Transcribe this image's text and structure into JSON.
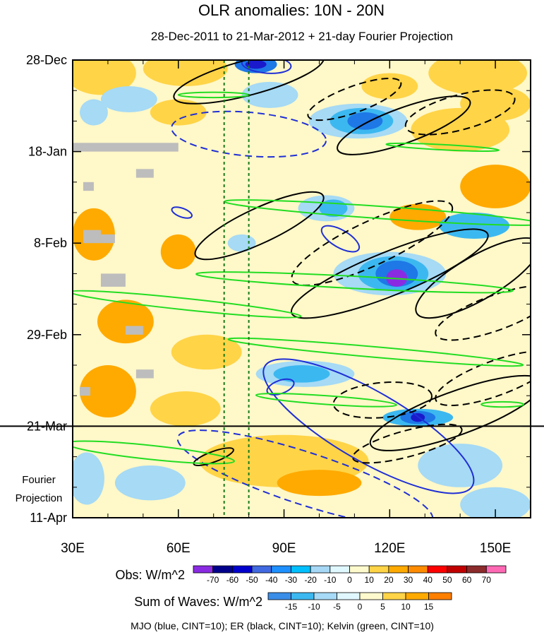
{
  "chart_data": {
    "type": "heatmap",
    "title": "OLR anomalies: 10N - 20N",
    "subtitle": "28-Dec-2011 to 21-Mar-2012 + 21-day Fourier Projection",
    "x_axis": {
      "range": [
        30,
        160
      ],
      "ticks": [
        30,
        60,
        90,
        120,
        150
      ],
      "tick_labels": [
        "30E",
        "60E",
        "90E",
        "120E",
        "150E"
      ]
    },
    "y_axis": {
      "range_days": [
        0,
        105
      ],
      "ticks": [
        0,
        21,
        42,
        63,
        84,
        105
      ],
      "tick_labels": [
        "28-Dec",
        "18-Jan",
        "8-Feb",
        "29-Feb",
        "21-Mar",
        "11-Apr"
      ]
    },
    "projection_label": [
      "Fourier",
      "Projection"
    ],
    "projection_start_day": 84,
    "reference_longitudes": [
      73,
      80
    ],
    "obs_colorbar": {
      "label": "Obs: W/m^2",
      "levels": [
        "-70",
        "-60",
        "-50",
        "-40",
        "-30",
        "-20",
        "-10",
        "0",
        "10",
        "20",
        "30",
        "40",
        "50",
        "60",
        "70"
      ],
      "colors": [
        "#8a2be2",
        "#00008b",
        "#0000cd",
        "#4169e1",
        "#1e90ff",
        "#00bfff",
        "#a6d8f5",
        "#e0f8ff",
        "#fffacd",
        "#ffd447",
        "#ffaa00",
        "#ff8c00",
        "#ff0000",
        "#c00000",
        "#8b2b2b",
        "#ff69b4"
      ]
    },
    "waves_colorbar": {
      "label": "Sum of Waves: W/m^2",
      "levels": [
        "-15",
        "-10",
        "-5",
        "0",
        "5",
        "10",
        "15"
      ],
      "colors": [
        "#3a8ee8",
        "#3cb8f0",
        "#a6daf7",
        "#e0f7ff",
        "#fffacd",
        "#ffd447",
        "#ffaa00",
        "#ff7f00"
      ]
    },
    "legend": "MJO (blue, CINT=10); ER (black, CINT=10); Kelvin (green, CINT=10)",
    "fill_colors": {
      "cream": "#fff8c8",
      "yellow": "#ffd447",
      "orange": "#ffaa00",
      "light_blue": "#a6daf5",
      "sky_blue": "#3cb8f0",
      "blue": "#1e78e6",
      "dark_blue": "#1a1acc",
      "purple": "#8a2be2",
      "missing_gray": "#bdbdbd"
    },
    "field_patches": [
      {
        "lon": 38,
        "day": 3,
        "rx": 10,
        "ry": 5,
        "c": "yellow"
      },
      {
        "lon": 62,
        "day": 2,
        "rx": 12,
        "ry": 4,
        "c": "yellow"
      },
      {
        "lon": 145,
        "day": 3,
        "rx": 14,
        "ry": 5,
        "c": "yellow"
      },
      {
        "lon": 120,
        "day": 6,
        "rx": 8,
        "ry": 3,
        "c": "yellow"
      },
      {
        "lon": 46,
        "day": 9,
        "rx": 8,
        "ry": 3,
        "c": "light_blue"
      },
      {
        "lon": 36,
        "day": 12,
        "rx": 4,
        "ry": 3,
        "c": "light_blue"
      },
      {
        "lon": 60,
        "day": 12,
        "rx": 8,
        "ry": 3,
        "c": "yellow"
      },
      {
        "lon": 150,
        "day": 10,
        "rx": 10,
        "ry": 4,
        "c": "yellow"
      },
      {
        "lon": 140,
        "day": 16,
        "rx": 14,
        "ry": 5,
        "c": "yellow"
      },
      {
        "lon": 86,
        "day": 8,
        "rx": 8,
        "ry": 3,
        "c": "light_blue"
      },
      {
        "lon": 150,
        "day": 29,
        "rx": 10,
        "ry": 5,
        "c": "orange"
      },
      {
        "lon": 128,
        "day": 36,
        "rx": 8,
        "ry": 3,
        "c": "orange"
      },
      {
        "lon": 36,
        "day": 40,
        "rx": 6,
        "ry": 6,
        "c": "orange"
      },
      {
        "lon": 60,
        "day": 44,
        "rx": 5,
        "ry": 4,
        "c": "orange"
      },
      {
        "lon": 45,
        "day": 60,
        "rx": 8,
        "ry": 5,
        "c": "orange"
      },
      {
        "lon": 68,
        "day": 67,
        "rx": 10,
        "ry": 4,
        "c": "yellow"
      },
      {
        "lon": 40,
        "day": 76,
        "rx": 8,
        "ry": 6,
        "c": "orange"
      },
      {
        "lon": 62,
        "day": 80,
        "rx": 10,
        "ry": 4,
        "c": "yellow"
      },
      {
        "lon": 90,
        "day": 92,
        "rx": 24,
        "ry": 6,
        "c": "yellow"
      },
      {
        "lon": 100,
        "day": 97,
        "rx": 12,
        "ry": 3,
        "c": "orange"
      },
      {
        "lon": 140,
        "day": 93,
        "rx": 12,
        "ry": 5,
        "c": "light_blue"
      },
      {
        "lon": 52,
        "day": 97,
        "rx": 10,
        "ry": 4,
        "c": "light_blue"
      },
      {
        "lon": 150,
        "day": 102,
        "rx": 10,
        "ry": 4,
        "c": "light_blue"
      },
      {
        "lon": 34,
        "day": 96,
        "rx": 5,
        "ry": 6,
        "c": "light_blue"
      },
      {
        "lon": 82,
        "day": 1,
        "rx": 6,
        "ry": 2,
        "c": "blue"
      },
      {
        "lon": 82,
        "day": 1,
        "rx": 3,
        "ry": 1,
        "c": "dark_blue"
      },
      {
        "lon": 111,
        "day": 14,
        "rx": 14,
        "ry": 4,
        "c": "light_blue"
      },
      {
        "lon": 112,
        "day": 14,
        "rx": 9,
        "ry": 3,
        "c": "sky_blue"
      },
      {
        "lon": 113,
        "day": 14,
        "rx": 5,
        "ry": 2,
        "c": "blue"
      },
      {
        "lon": 102,
        "day": 34,
        "rx": 8,
        "ry": 3,
        "c": "light_blue"
      },
      {
        "lon": 104,
        "day": 34,
        "rx": 4,
        "ry": 2,
        "c": "sky_blue"
      },
      {
        "lon": 144,
        "day": 38,
        "rx": 10,
        "ry": 3,
        "c": "sky_blue"
      },
      {
        "lon": 78,
        "day": 42,
        "rx": 4,
        "ry": 2,
        "c": "light_blue"
      },
      {
        "lon": 120,
        "day": 49,
        "rx": 16,
        "ry": 5,
        "c": "light_blue"
      },
      {
        "lon": 121,
        "day": 49,
        "rx": 10,
        "ry": 4,
        "c": "sky_blue"
      },
      {
        "lon": 122,
        "day": 49,
        "rx": 6,
        "ry": 3,
        "c": "blue"
      },
      {
        "lon": 122,
        "day": 50,
        "rx": 3,
        "ry": 2,
        "c": "purple"
      },
      {
        "lon": 96,
        "day": 72,
        "rx": 14,
        "ry": 3,
        "c": "light_blue"
      },
      {
        "lon": 95,
        "day": 72,
        "rx": 8,
        "ry": 2,
        "c": "sky_blue"
      },
      {
        "lon": 128,
        "day": 82,
        "rx": 10,
        "ry": 2,
        "c": "sky_blue"
      },
      {
        "lon": 128,
        "day": 82,
        "rx": 5,
        "ry": 1.5,
        "c": "blue"
      },
      {
        "lon": 128,
        "day": 82,
        "rx": 2,
        "ry": 1,
        "c": "dark_blue"
      }
    ],
    "missing_cells": [
      {
        "lon0": 30,
        "lon1": 60,
        "d0": 19,
        "d1": 21
      },
      {
        "lon0": 48,
        "lon1": 53,
        "d0": 25,
        "d1": 27
      },
      {
        "lon0": 33,
        "lon1": 36,
        "d0": 28,
        "d1": 30
      },
      {
        "lon0": 33,
        "lon1": 38,
        "d0": 39,
        "d1": 42
      },
      {
        "lon0": 38,
        "lon1": 42,
        "d0": 40,
        "d1": 42
      },
      {
        "lon0": 38,
        "lon1": 45,
        "d0": 49,
        "d1": 52
      },
      {
        "lon0": 45,
        "lon1": 50,
        "d0": 61,
        "d1": 63
      },
      {
        "lon0": 48,
        "lon1": 53,
        "d0": 71,
        "d1": 73
      },
      {
        "lon0": 32,
        "lon1": 35,
        "d0": 75,
        "d1": 77
      }
    ],
    "wave_contours": {
      "mjo": [
        {
          "lon": 85,
          "day": 1,
          "rx": 7,
          "ry": 2,
          "rot": 5,
          "dash": false
        },
        {
          "lon": 80,
          "day": 17,
          "rx": 22,
          "ry": 5,
          "rot": 5,
          "dash": true
        },
        {
          "lon": 61,
          "day": 35,
          "rx": 3,
          "ry": 1,
          "rot": 20,
          "dash": false
        },
        {
          "lon": 106,
          "day": 41,
          "rx": 6,
          "ry": 2,
          "rot": 30,
          "dash": false
        },
        {
          "lon": 89,
          "day": 75,
          "rx": 4,
          "ry": 1.5,
          "rot": -20,
          "dash": false
        },
        {
          "lon": 114,
          "day": 84,
          "rx": 34,
          "ry": 8,
          "rot": 30,
          "dash": false
        },
        {
          "lon": 96,
          "day": 96,
          "rx": 38,
          "ry": 6,
          "rot": 18,
          "dash": true
        }
      ],
      "er": [
        {
          "lon": 80,
          "day": 4,
          "rx": 22,
          "ry": 4,
          "rot": -15,
          "dash": false
        },
        {
          "lon": 110,
          "day": 9,
          "rx": 14,
          "ry": 3,
          "rot": -20,
          "dash": true
        },
        {
          "lon": 124,
          "day": 15,
          "rx": 20,
          "ry": 4,
          "rot": -20,
          "dash": false
        },
        {
          "lon": 140,
          "day": 12,
          "rx": 16,
          "ry": 4,
          "rot": -15,
          "dash": true
        },
        {
          "lon": 83,
          "day": 38,
          "rx": 20,
          "ry": 4,
          "rot": -25,
          "dash": false
        },
        {
          "lon": 115,
          "day": 42,
          "rx": 25,
          "ry": 5,
          "rot": -25,
          "dash": true
        },
        {
          "lon": 120,
          "day": 49,
          "rx": 30,
          "ry": 5,
          "rot": -22,
          "dash": false
        },
        {
          "lon": 145,
          "day": 50,
          "rx": 20,
          "ry": 5,
          "rot": -30,
          "dash": false
        },
        {
          "lon": 150,
          "day": 58,
          "rx": 18,
          "ry": 4,
          "rot": -20,
          "dash": true
        },
        {
          "lon": 150,
          "day": 73,
          "rx": 18,
          "ry": 4,
          "rot": -20,
          "dash": true
        },
        {
          "lon": 118,
          "day": 78,
          "rx": 14,
          "ry": 4,
          "rot": -5,
          "dash": true
        },
        {
          "lon": 139,
          "day": 81,
          "rx": 26,
          "ry": 5,
          "rot": -20,
          "dash": false
        },
        {
          "lon": 125,
          "day": 88,
          "rx": 16,
          "ry": 3,
          "rot": -15,
          "dash": true
        },
        {
          "lon": 70,
          "day": 91,
          "rx": 6,
          "ry": 1.2,
          "rot": -20,
          "dash": false
        }
      ],
      "kelvin": [
        {
          "lon": 70,
          "day": 8,
          "rx": 10,
          "ry": 0.6,
          "rot": 0
        },
        {
          "lon": 135,
          "day": 20,
          "rx": 16,
          "ry": 0.6,
          "rot": 3
        },
        {
          "lon": 118,
          "day": 35,
          "rx": 45,
          "ry": 1.4,
          "rot": 4
        },
        {
          "lon": 110,
          "day": 51,
          "rx": 45,
          "ry": 1.4,
          "rot": 3
        },
        {
          "lon": 62,
          "day": 56,
          "rx": 33,
          "ry": 1.3,
          "rot": 6
        },
        {
          "lon": 116,
          "day": 67,
          "rx": 42,
          "ry": 1.2,
          "rot": 5
        },
        {
          "lon": 102,
          "day": 78,
          "rx": 20,
          "ry": 1,
          "rot": 4
        },
        {
          "lon": 52,
          "day": 90,
          "rx": 24,
          "ry": 1.6,
          "rot": 6
        },
        {
          "lon": 152,
          "day": 79,
          "rx": 6,
          "ry": 0.6,
          "rot": 0
        }
      ]
    }
  }
}
